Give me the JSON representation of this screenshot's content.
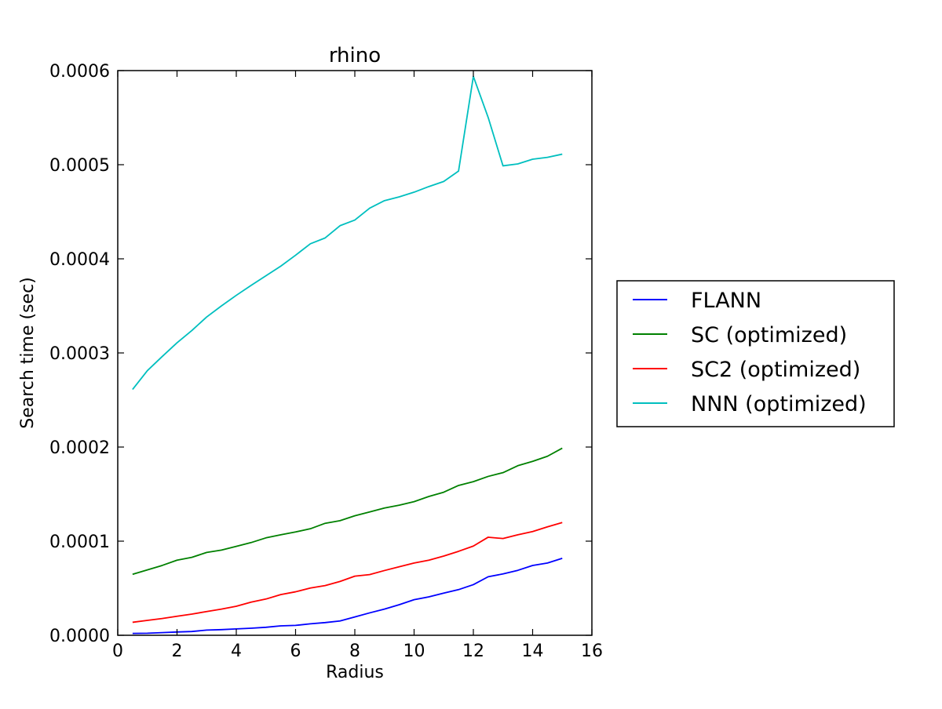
{
  "chart_data": {
    "type": "line",
    "title": "rhino",
    "xlabel": "Radius",
    "ylabel": "Search time (sec)",
    "xlim": [
      0,
      16
    ],
    "ylim": [
      0,
      0.0006
    ],
    "xticks": [
      "0",
      "2",
      "4",
      "6",
      "8",
      "10",
      "12",
      "14",
      "16"
    ],
    "yticks": [
      "0.0000",
      "0.0001",
      "0.0002",
      "0.0003",
      "0.0004",
      "0.0005",
      "0.0006"
    ],
    "grid": false,
    "legend_position": "right-outside",
    "x": [
      0.5,
      1,
      1.5,
      2,
      2.5,
      3,
      3.5,
      4,
      4.5,
      5,
      5.5,
      6,
      6.5,
      7,
      7.5,
      8,
      8.5,
      9,
      9.5,
      10,
      10.5,
      11,
      11.5,
      12,
      12.5,
      13,
      13.5,
      14,
      14.5,
      15
    ],
    "series": [
      {
        "name": "FLANN",
        "color": "#0000ff",
        "values": [
          2e-06,
          2.2e-06,
          2.8e-06,
          3.5e-06,
          4e-06,
          5.5e-06,
          6e-06,
          6.8e-06,
          7.5e-06,
          8.5e-06,
          1e-05,
          1.05e-05,
          1.22e-05,
          1.35e-05,
          1.52e-05,
          1.95e-05,
          2.38e-05,
          2.78e-05,
          3.25e-05,
          3.78e-05,
          4.08e-05,
          4.48e-05,
          4.85e-05,
          5.38e-05,
          6.22e-05,
          6.52e-05,
          6.9e-05,
          7.42e-05,
          7.68e-05,
          8.18e-05
        ]
      },
      {
        "name": "SC (optimized)",
        "color": "#008000",
        "values": [
          6.48e-05,
          6.95e-05,
          7.42e-05,
          7.98e-05,
          8.28e-05,
          8.8e-05,
          9.05e-05,
          9.45e-05,
          9.85e-05,
          0.0001035,
          0.0001068,
          0.0001098,
          0.0001132,
          0.000119,
          0.0001218,
          0.000127,
          0.000131,
          0.0001352,
          0.0001382,
          0.000142,
          0.0001475,
          0.000152,
          0.0001592,
          0.0001632,
          0.0001688,
          0.0001728,
          0.0001802,
          0.0001848,
          0.0001902,
          0.0001988
        ]
      },
      {
        "name": "SC2 (optimized)",
        "color": "#ff0000",
        "values": [
          1.38e-05,
          1.58e-05,
          1.78e-05,
          2.02e-05,
          2.25e-05,
          2.52e-05,
          2.78e-05,
          3.08e-05,
          3.52e-05,
          3.85e-05,
          4.32e-05,
          4.62e-05,
          5.02e-05,
          5.28e-05,
          5.72e-05,
          6.28e-05,
          6.45e-05,
          6.88e-05,
          7.28e-05,
          7.68e-05,
          7.98e-05,
          8.42e-05,
          8.92e-05,
          9.48e-05,
          0.0001042,
          0.0001028,
          0.0001068,
          0.0001102,
          0.0001152,
          0.0001198
        ]
      },
      {
        "name": "NNN (optimized)",
        "color": "#00bfbf",
        "values": [
          0.0002612,
          0.0002812,
          0.0002962,
          0.0003108,
          0.0003238,
          0.0003382,
          0.00035,
          0.0003612,
          0.0003718,
          0.000382,
          0.0003922,
          0.0004038,
          0.000416,
          0.0004222,
          0.0004352,
          0.0004412,
          0.0004538,
          0.0004618,
          0.0004658,
          0.0004708,
          0.0004768,
          0.0004822,
          0.0004932,
          0.0005938,
          0.0005502,
          0.0004988,
          0.0005008,
          0.0005058,
          0.0005078,
          0.0005112
        ]
      }
    ]
  }
}
